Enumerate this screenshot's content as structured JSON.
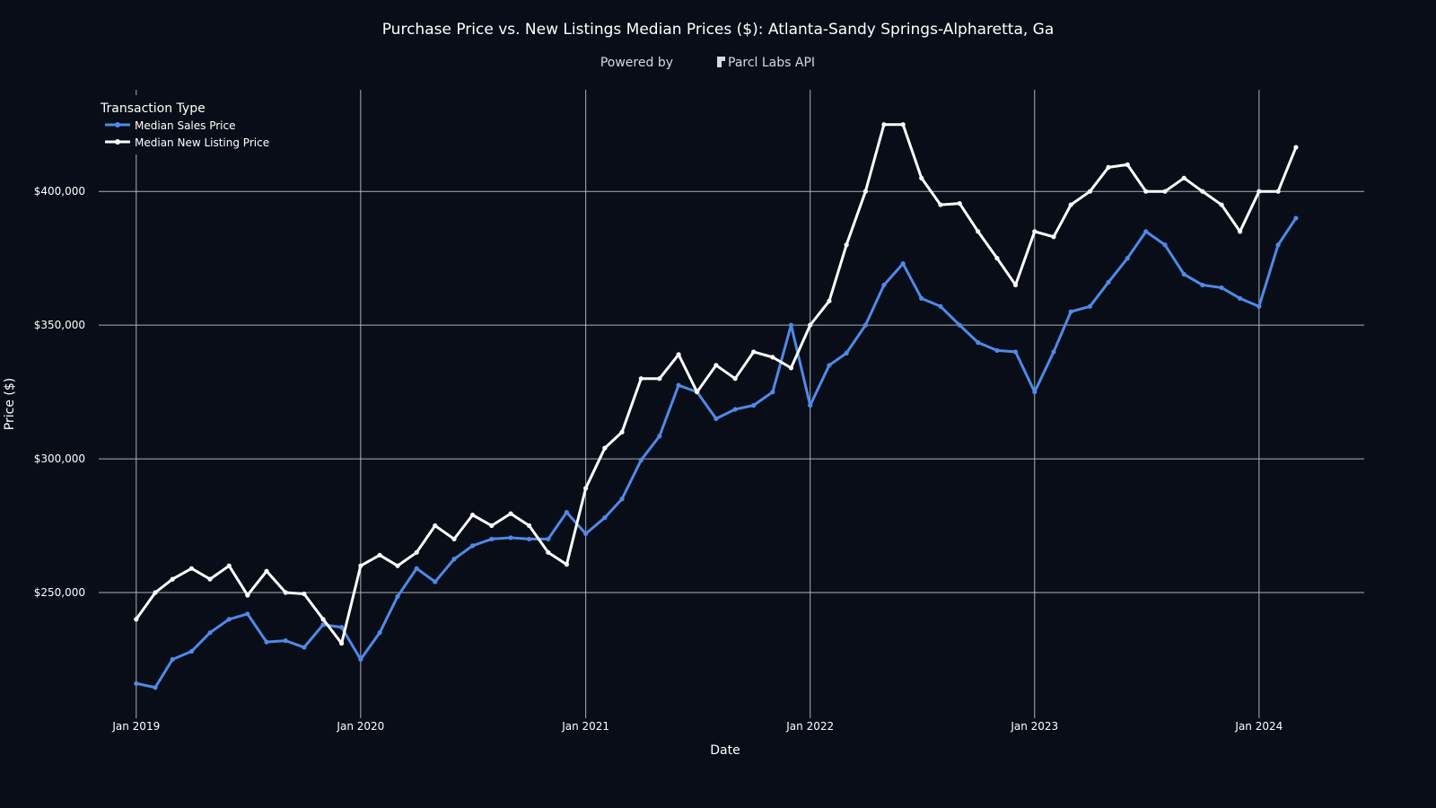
{
  "chart_data": {
    "type": "line",
    "title": "Purchase Price vs. New Listings Median Prices ($): Atlanta-Sandy Springs-Alpharetta, Ga",
    "subtitle_prefix": "Powered by",
    "subtitle_brand": "Parcl Labs API",
    "xlabel": "Date",
    "ylabel": "Price ($)",
    "legend_title": "Transaction Type",
    "legend_position": "top-left",
    "grid": true,
    "xlim": [
      "2018-11-01",
      "2024-06-20"
    ],
    "ylim": [
      203000,
      438000
    ],
    "x_ticks": [
      {
        "date": "2019-01-01",
        "label": "Jan 2019"
      },
      {
        "date": "2020-01-01",
        "label": "Jan 2020"
      },
      {
        "date": "2021-01-01",
        "label": "Jan 2021"
      },
      {
        "date": "2022-01-01",
        "label": "Jan 2022"
      },
      {
        "date": "2023-01-01",
        "label": "Jan 2023"
      },
      {
        "date": "2024-01-01",
        "label": "Jan 2024"
      }
    ],
    "y_ticks": [
      {
        "value": 250000,
        "label": "$250,000"
      },
      {
        "value": 300000,
        "label": "$300,000"
      },
      {
        "value": 350000,
        "label": "$350,000"
      },
      {
        "value": 400000,
        "label": "$400,000"
      }
    ],
    "x": [
      "2019-01-01",
      "2019-02-01",
      "2019-03-01",
      "2019-04-01",
      "2019-05-01",
      "2019-06-01",
      "2019-07-01",
      "2019-08-01",
      "2019-09-01",
      "2019-10-01",
      "2019-11-01",
      "2019-12-01",
      "2020-01-01",
      "2020-02-01",
      "2020-03-01",
      "2020-04-01",
      "2020-05-01",
      "2020-06-01",
      "2020-07-01",
      "2020-08-01",
      "2020-09-01",
      "2020-10-01",
      "2020-11-01",
      "2020-12-01",
      "2021-01-01",
      "2021-02-01",
      "2021-03-01",
      "2021-04-01",
      "2021-05-01",
      "2021-06-01",
      "2021-07-01",
      "2021-08-01",
      "2021-09-01",
      "2021-10-01",
      "2021-11-01",
      "2021-12-01",
      "2022-01-01",
      "2022-02-01",
      "2022-03-01",
      "2022-04-01",
      "2022-05-01",
      "2022-06-01",
      "2022-07-01",
      "2022-08-01",
      "2022-09-01",
      "2022-10-01",
      "2022-11-01",
      "2022-12-01",
      "2023-01-01",
      "2023-02-01",
      "2023-03-01",
      "2023-04-01",
      "2023-05-01",
      "2023-06-01",
      "2023-07-01",
      "2023-08-01",
      "2023-09-01",
      "2023-10-01",
      "2023-11-01",
      "2023-12-01",
      "2024-01-01",
      "2024-02-01",
      "2024-03-01"
    ],
    "series": [
      {
        "name": "Median Sales Price",
        "color": "#4f8ae8",
        "values": [
          216000,
          214500,
          225000,
          228000,
          235000,
          240000,
          242000,
          231500,
          232000,
          229500,
          238000,
          237000,
          225000,
          235000,
          248500,
          259000,
          254000,
          262500,
          267500,
          270000,
          270500,
          270000,
          270000,
          280000,
          272000,
          278000,
          285000,
          299500,
          308500,
          327500,
          325000,
          315000,
          318500,
          320000,
          325000,
          350000,
          320000,
          335000,
          339500,
          350000,
          365000,
          373000,
          360000,
          357000,
          350000,
          343500,
          340500,
          340000,
          325000,
          340000,
          355000,
          357000,
          366000,
          375000,
          385000,
          380000,
          369000,
          365000,
          364000,
          360000,
          357000,
          380000,
          390000
        ]
      },
      {
        "name": "Median New Listing Price",
        "color": "#ffffff",
        "values": [
          240000,
          250000,
          255000,
          259000,
          255000,
          260000,
          249000,
          258000,
          250000,
          249500,
          240000,
          231000,
          260000,
          264000,
          260000,
          265000,
          275000,
          270000,
          279000,
          275000,
          279500,
          275000,
          265000,
          260500,
          289000,
          304000,
          310000,
          330000,
          330000,
          339000,
          325000,
          335000,
          330000,
          340000,
          338000,
          334000,
          350000,
          359000,
          380000,
          400000,
          425000,
          425000,
          405000,
          395000,
          395500,
          385000,
          375000,
          365000,
          385000,
          383000,
          395000,
          400000,
          409000,
          410000,
          400000,
          400000,
          405000,
          400000,
          395000,
          385000,
          400000,
          400000,
          416500
        ]
      }
    ]
  }
}
